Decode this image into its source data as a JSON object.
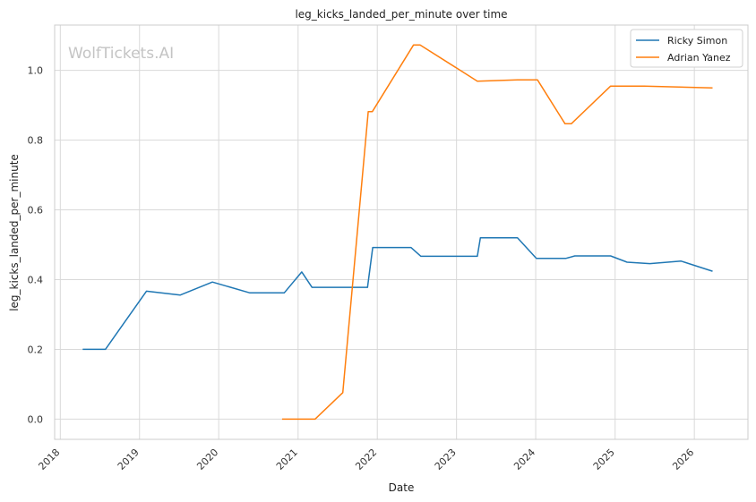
{
  "chart_data": {
    "type": "line",
    "title": "leg_kicks_landed_per_minute over time",
    "xlabel": "Date",
    "ylabel": "leg_kicks_landed_per_minute",
    "watermark": "WolfTickets.AI",
    "x_ticks": [
      "2018",
      "2019",
      "2020",
      "2021",
      "2022",
      "2023",
      "2024",
      "2025",
      "2026"
    ],
    "y_ticks": [
      "0.0",
      "0.2",
      "0.4",
      "0.6",
      "0.8",
      "1.0"
    ],
    "xlim": [
      "2017-12-06",
      "2026-09-05"
    ],
    "ylim": [
      -0.058,
      1.13
    ],
    "grid": true,
    "legend_position": "top-right",
    "series": [
      {
        "name": "Ricky Simon",
        "color": "#1f77b4",
        "points": [
          [
            "2018-04-14",
            0.2
          ],
          [
            "2018-07-28",
            0.2
          ],
          [
            "2019-02-02",
            0.367
          ],
          [
            "2019-07-08",
            0.356
          ],
          [
            "2019-12-03",
            0.393
          ],
          [
            "2020-05-24",
            0.362
          ],
          [
            "2020-10-29",
            0.362
          ],
          [
            "2021-01-18",
            0.422
          ],
          [
            "2021-03-06",
            0.378
          ],
          [
            "2021-11-17",
            0.378
          ],
          [
            "2021-12-11",
            0.492
          ],
          [
            "2022-06-05",
            0.492
          ],
          [
            "2022-07-21",
            0.467
          ],
          [
            "2023-04-07",
            0.467
          ],
          [
            "2023-04-21",
            0.52
          ],
          [
            "2023-10-09",
            0.52
          ],
          [
            "2024-01-04",
            0.461
          ],
          [
            "2024-05-20",
            0.461
          ],
          [
            "2024-06-29",
            0.468
          ],
          [
            "2024-12-11",
            0.468
          ],
          [
            "2025-02-25",
            0.45
          ],
          [
            "2025-06-10",
            0.446
          ],
          [
            "2025-11-01",
            0.453
          ],
          [
            "2026-03-26",
            0.424
          ]
        ]
      },
      {
        "name": "Adrian Yanez",
        "color": "#ff7f0e",
        "points": [
          [
            "2020-10-19",
            0.0
          ],
          [
            "2021-03-20",
            0.0
          ],
          [
            "2021-07-26",
            0.076
          ],
          [
            "2021-11-20",
            0.882
          ],
          [
            "2021-12-09",
            0.882
          ],
          [
            "2022-06-17",
            1.073
          ],
          [
            "2022-07-17",
            1.073
          ],
          [
            "2023-04-07",
            0.969
          ],
          [
            "2023-10-09",
            0.973
          ],
          [
            "2024-01-09",
            0.973
          ],
          [
            "2024-05-15",
            0.847
          ],
          [
            "2024-06-13",
            0.847
          ],
          [
            "2024-12-11",
            0.955
          ],
          [
            "2025-05-15",
            0.955
          ],
          [
            "2026-03-26",
            0.95
          ]
        ]
      }
    ]
  }
}
